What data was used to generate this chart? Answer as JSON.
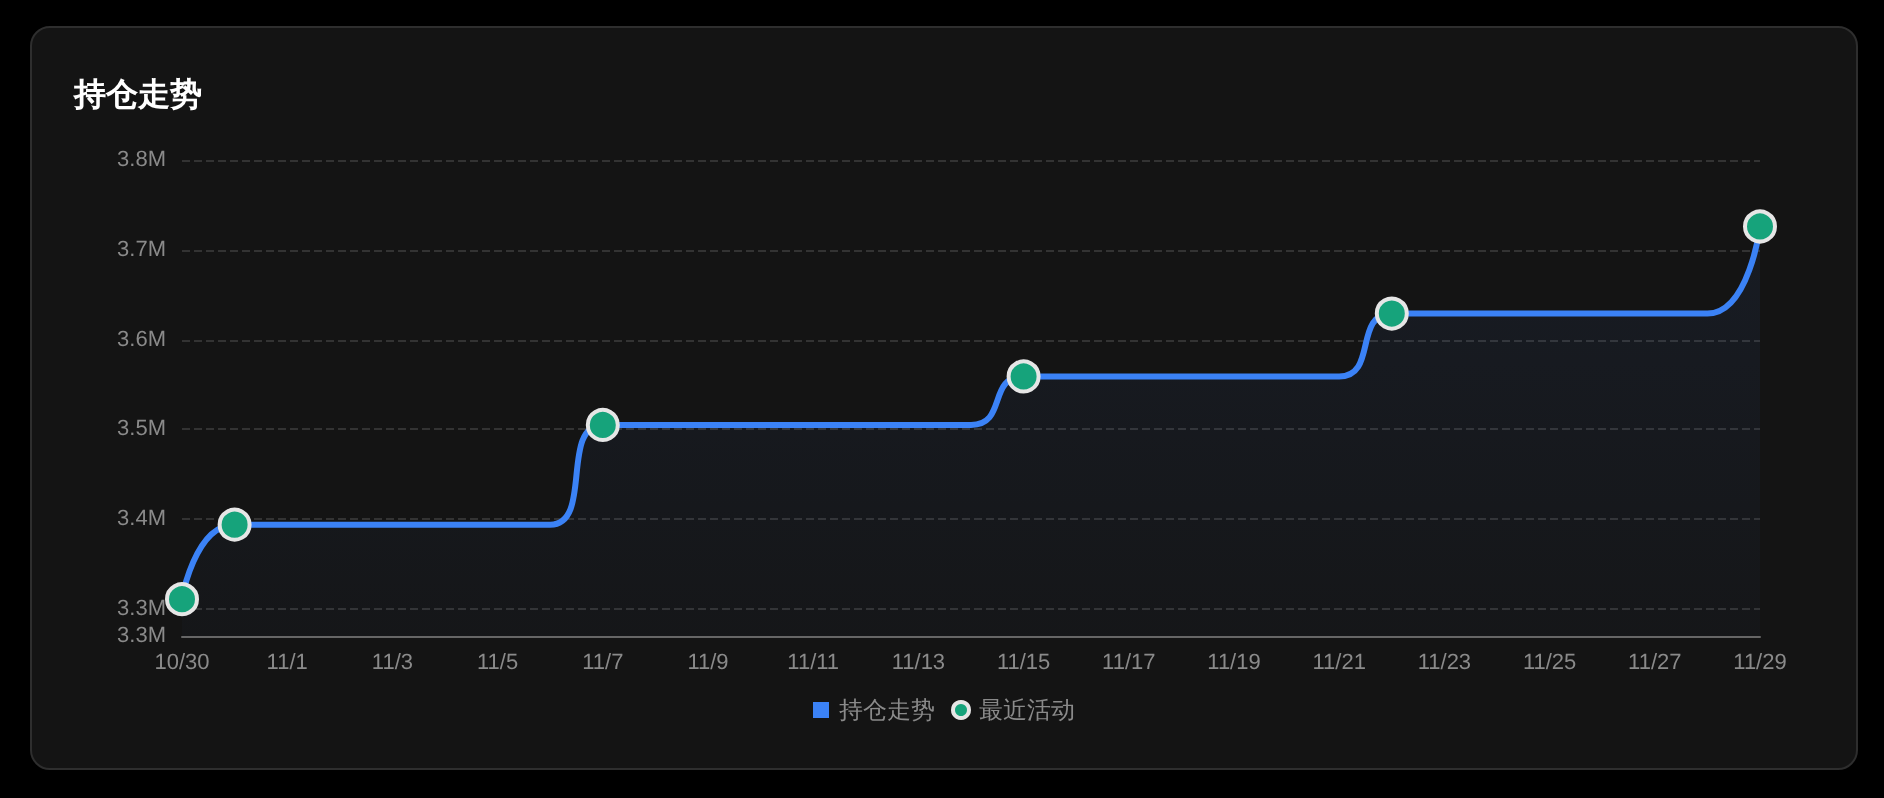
{
  "chart_data": {
    "type": "area",
    "title": "持仓走势",
    "xlim": [
      "--10-30",
      "--11-29"
    ],
    "xticks": [
      {
        "value": "--10-30",
        "label": "10/30"
      },
      {
        "value": "--11-01",
        "label": "11/1"
      },
      {
        "value": "--11-03",
        "label": "11/3"
      },
      {
        "value": "--11-05",
        "label": "11/5"
      },
      {
        "value": "--11-07",
        "label": "11/7"
      },
      {
        "value": "--11-09",
        "label": "11/9"
      },
      {
        "value": "--11-11",
        "label": "11/11"
      },
      {
        "value": "--11-13",
        "label": "11/13"
      },
      {
        "value": "--11-15",
        "label": "11/15"
      },
      {
        "value": "--11-17",
        "label": "11/17"
      },
      {
        "value": "--11-19",
        "label": "11/19"
      },
      {
        "value": "--11-21",
        "label": "11/21"
      },
      {
        "value": "--11-23",
        "label": "11/23"
      },
      {
        "value": "--11-25",
        "label": "11/25"
      },
      {
        "value": "--11-27",
        "label": "11/27"
      },
      {
        "value": "--11-29",
        "label": "11/29"
      }
    ],
    "ylim": [
      3270000,
      3800000
    ],
    "yticks": [
      {
        "value": 3270000,
        "label": "3.3M"
      },
      {
        "value": 3300000,
        "label": "3.3M"
      },
      {
        "value": 3400000,
        "label": "3.4M"
      },
      {
        "value": 3500000,
        "label": "3.5M"
      },
      {
        "value": 3600000,
        "label": "3.6M"
      },
      {
        "value": 3700000,
        "label": "3.7M"
      },
      {
        "value": 3800000,
        "label": "3.8M"
      }
    ],
    "grid": "y",
    "legend": "bottom",
    "series": [
      {
        "name": "持仓走势",
        "color": "#3b82f6",
        "marker": "none",
        "x": [
          "--10-30",
          "--10-31",
          "--11-01",
          "--11-02",
          "--11-03",
          "--11-04",
          "--11-05",
          "--11-06",
          "--11-07",
          "--11-08",
          "--11-09",
          "--11-10",
          "--11-11",
          "--11-12",
          "--11-13",
          "--11-14",
          "--11-15",
          "--11-16",
          "--11-17",
          "--11-18",
          "--11-19",
          "--11-20",
          "--11-21",
          "--11-22",
          "--11-23",
          "--11-24",
          "--11-25",
          "--11-26",
          "--11-27",
          "--11-28",
          "--11-29"
        ],
        "values": [
          3311000,
          3394000,
          3394000,
          3394000,
          3394000,
          3394000,
          3394000,
          3394000,
          3505000,
          3505000,
          3505000,
          3505000,
          3505000,
          3505000,
          3505000,
          3505000,
          3559000,
          3559000,
          3559000,
          3559000,
          3559000,
          3559000,
          3559000,
          3629000,
          3629000,
          3629000,
          3629000,
          3629000,
          3629000,
          3629000,
          3726000
        ]
      },
      {
        "name": "最近活动",
        "type": "scatter",
        "color": "#16a37b",
        "marker": "circle",
        "x": [
          "--10-30",
          "--10-31",
          "--11-07",
          "--11-15",
          "--11-22",
          "--11-29"
        ],
        "values": [
          3311000,
          3394000,
          3505000,
          3559000,
          3629000,
          3726000
        ]
      }
    ]
  }
}
